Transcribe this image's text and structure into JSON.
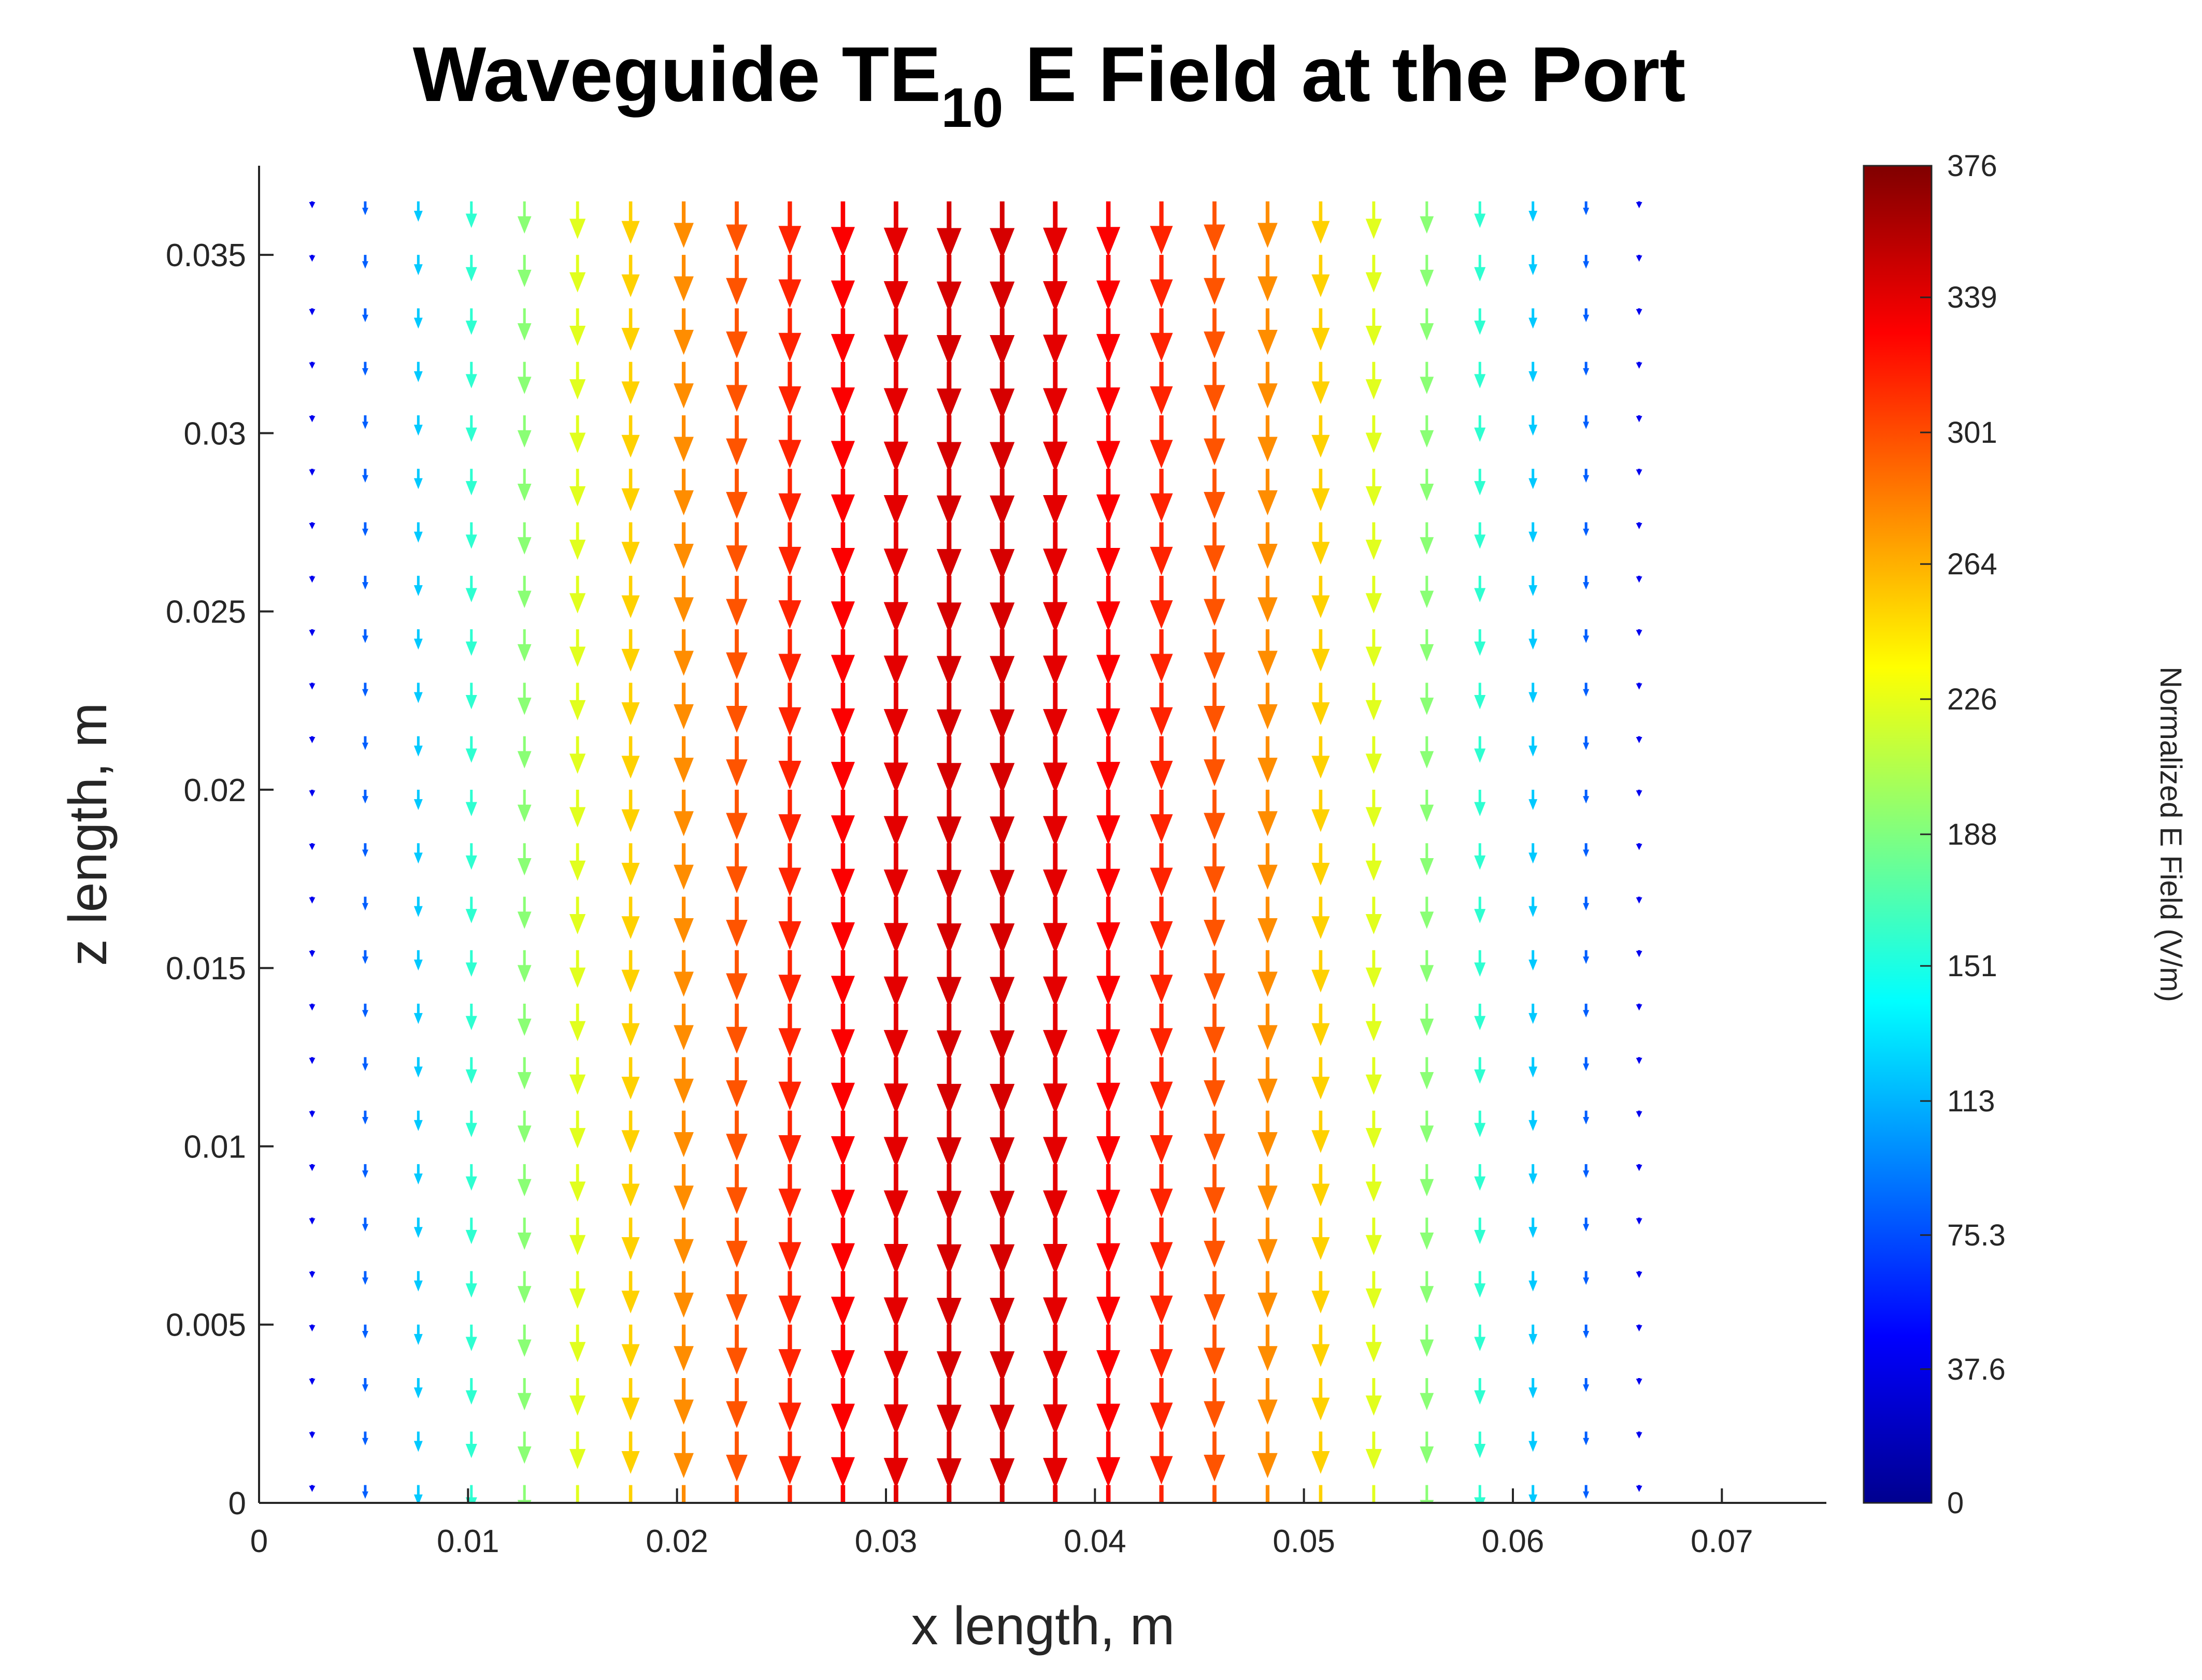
{
  "chart_data": {
    "type": "quiver",
    "title_main": "Waveguide TE",
    "title_sub": "10",
    "title_rest": " E Field at the Port",
    "xlabel": "x length, m",
    "ylabel": "z length, m",
    "xlim": [
      0,
      0.075
    ],
    "ylim": [
      0,
      0.0375
    ],
    "xticks": [
      0,
      0.01,
      0.02,
      0.03,
      0.04,
      0.05,
      0.06,
      0.07
    ],
    "xtick_labels": [
      "0",
      "0.01",
      "0.02",
      "0.03",
      "0.04",
      "0.05",
      "0.06",
      "0.07"
    ],
    "yticks": [
      0,
      0.005,
      0.01,
      0.015,
      0.02,
      0.025,
      0.03,
      0.035
    ],
    "ytick_labels": [
      "0",
      "0.005",
      "0.01",
      "0.015",
      "0.02",
      "0.025",
      "0.03",
      "0.035"
    ],
    "field": {
      "direction": "negative-z",
      "x": [
        0.00254,
        0.00508,
        0.00762,
        0.01016,
        0.0127,
        0.01524,
        0.01778,
        0.02032,
        0.02286,
        0.0254,
        0.02794,
        0.03048,
        0.03302,
        0.03556,
        0.0381,
        0.04064,
        0.04318,
        0.04572,
        0.04826,
        0.0508,
        0.05334,
        0.05588,
        0.05842,
        0.06096,
        0.0635,
        0.06604,
        0.06858,
        0.07112
      ],
      "magnitude": [
        41,
        82,
        121,
        158,
        192,
        224,
        252,
        277,
        298,
        316,
        330,
        339,
        344,
        344,
        339,
        330,
        316,
        298,
        277,
        252,
        224,
        192,
        158,
        121,
        82,
        41,
        0,
        0
      ],
      "z_rows": [
        0.0005,
        0.002,
        0.0035,
        0.005,
        0.0065,
        0.008,
        0.0095,
        0.011,
        0.0125,
        0.014,
        0.0155,
        0.017,
        0.0185,
        0.02,
        0.0215,
        0.023,
        0.0245,
        0.026,
        0.0275,
        0.029,
        0.0305,
        0.032,
        0.0335,
        0.035,
        0.0365
      ]
    },
    "colorbar": {
      "label": "Normalized E Field (V/m)",
      "colormap": "jet",
      "range": [
        0,
        376
      ],
      "ticks": [
        0,
        37.6,
        75.3,
        113,
        151,
        188,
        226,
        264,
        301,
        339,
        376
      ],
      "tick_labels": [
        "0",
        "37.6",
        "75.3",
        "113",
        "151",
        "188",
        "226",
        "264",
        "301",
        "339",
        "376"
      ]
    }
  }
}
